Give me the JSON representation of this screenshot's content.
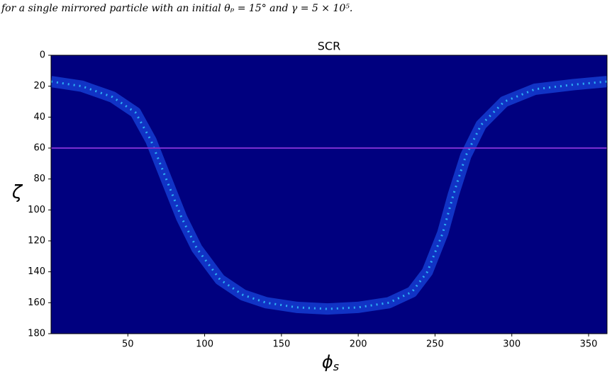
{
  "caption": "for a single mirrored particle with an initial θₚ = 15° and γ = 5 × 10⁵.",
  "chart_data": {
    "type": "line",
    "title": "SCR",
    "xlabel": {
      "symbol": "ϕ",
      "subscript": "s"
    },
    "ylabel": "ζ",
    "background": "#00007f",
    "series": [
      {
        "color": "#1f5cff",
        "x": [
          0,
          20,
          40,
          55,
          65,
          75,
          85,
          95,
          110,
          125,
          140,
          160,
          180,
          200,
          220,
          235,
          245,
          255,
          262,
          270,
          280,
          295,
          315,
          340,
          362
        ],
        "values": [
          17,
          20,
          27,
          37,
          55,
          80,
          105,
          125,
          145,
          155,
          160,
          163,
          164,
          163,
          160,
          153,
          140,
          115,
          90,
          65,
          45,
          30,
          22,
          19,
          17
        ]
      }
    ],
    "hline": {
      "value": 60,
      "color": "#7b2fd0"
    },
    "xlim": [
      0,
      362
    ],
    "xticks": [
      50,
      100,
      150,
      200,
      250,
      300,
      350
    ],
    "ylim": [
      0,
      180
    ],
    "yticks": [
      0,
      20,
      40,
      60,
      80,
      100,
      120,
      140,
      160,
      180
    ],
    "y_inverted": true
  }
}
